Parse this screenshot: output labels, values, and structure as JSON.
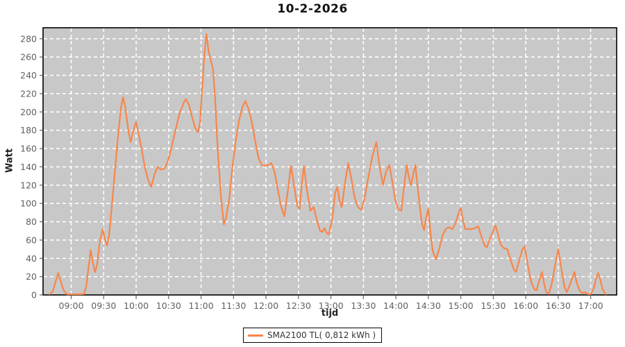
{
  "title": "10-2-2026",
  "y_axis": {
    "label": "Watt",
    "ticks": [
      0,
      20,
      40,
      60,
      80,
      100,
      120,
      140,
      160,
      180,
      200,
      220,
      240,
      260,
      280
    ]
  },
  "x_axis": {
    "label": "tijd",
    "ticks": [
      "09:00",
      "09:30",
      "10:00",
      "10:30",
      "11:00",
      "11:30",
      "12:00",
      "12:30",
      "13:00",
      "13:30",
      "14:00",
      "14:30",
      "15:00",
      "15:30",
      "16:00",
      "16:30",
      "17:00"
    ]
  },
  "legend": {
    "series_label": "SMA2100 TL( 0,812 kWh )"
  },
  "colors": {
    "plot_background": "#c8c8c8",
    "grid": "#ffffff",
    "series": "#f8854a",
    "plot_border": "#000000",
    "tick_label": "#5f5f5f",
    "tick_mark": "#666666"
  },
  "chart_data": {
    "type": "line",
    "title": "10-2-2026",
    "xlabel": "tijd",
    "ylabel": "Watt",
    "ylim": [
      0,
      292
    ],
    "x_time_range": [
      "08:34",
      "17:24"
    ],
    "grid": true,
    "legend_position": "bottom",
    "series": [
      {
        "name": "SMA2100 TL( 0,812 kWh )",
        "energy_kwh": "0,812",
        "color": "#f8854a",
        "points": [
          [
            "08:40",
            0
          ],
          [
            "08:43",
            4
          ],
          [
            "08:46",
            16
          ],
          [
            "08:48",
            24
          ],
          [
            "08:50",
            16
          ],
          [
            "08:53",
            5
          ],
          [
            "08:56",
            0
          ],
          [
            "09:00",
            0
          ],
          [
            "09:04",
            0
          ],
          [
            "09:08",
            0
          ],
          [
            "09:12",
            1
          ],
          [
            "09:14",
            10
          ],
          [
            "09:16",
            30
          ],
          [
            "09:18",
            49
          ],
          [
            "09:20",
            35
          ],
          [
            "09:22",
            25
          ],
          [
            "09:24",
            33
          ],
          [
            "09:26",
            55
          ],
          [
            "09:29",
            72
          ],
          [
            "09:31",
            62
          ],
          [
            "09:33",
            54
          ],
          [
            "09:35",
            65
          ],
          [
            "09:37",
            90
          ],
          [
            "09:40",
            130
          ],
          [
            "09:43",
            170
          ],
          [
            "09:46",
            205
          ],
          [
            "09:48",
            216
          ],
          [
            "09:50",
            205
          ],
          [
            "09:53",
            178
          ],
          [
            "09:55",
            167
          ],
          [
            "09:57",
            178
          ],
          [
            "10:00",
            189
          ],
          [
            "10:02",
            178
          ],
          [
            "10:05",
            160
          ],
          [
            "10:08",
            140
          ],
          [
            "10:11",
            126
          ],
          [
            "10:14",
            118
          ],
          [
            "10:17",
            132
          ],
          [
            "10:20",
            140
          ],
          [
            "10:23",
            137
          ],
          [
            "10:26",
            138
          ],
          [
            "10:29",
            145
          ],
          [
            "10:32",
            158
          ],
          [
            "10:36",
            178
          ],
          [
            "10:40",
            198
          ],
          [
            "10:44",
            210
          ],
          [
            "10:46",
            214
          ],
          [
            "10:49",
            207
          ],
          [
            "10:52",
            193
          ],
          [
            "10:55",
            181
          ],
          [
            "10:57",
            178
          ],
          [
            "10:59",
            188
          ],
          [
            "11:01",
            225
          ],
          [
            "11:03",
            262
          ],
          [
            "11:05",
            285
          ],
          [
            "11:07",
            266
          ],
          [
            "11:09",
            256
          ],
          [
            "11:11",
            247
          ],
          [
            "11:13",
            215
          ],
          [
            "11:15",
            168
          ],
          [
            "11:18",
            112
          ],
          [
            "11:21",
            77
          ],
          [
            "11:23",
            84
          ],
          [
            "11:26",
            105
          ],
          [
            "11:29",
            140
          ],
          [
            "11:32",
            168
          ],
          [
            "11:35",
            190
          ],
          [
            "11:38",
            205
          ],
          [
            "11:41",
            212
          ],
          [
            "11:44",
            203
          ],
          [
            "11:47",
            188
          ],
          [
            "11:50",
            168
          ],
          [
            "11:53",
            150
          ],
          [
            "11:56",
            142
          ],
          [
            "11:59",
            141
          ],
          [
            "12:02",
            142
          ],
          [
            "12:05",
            144
          ],
          [
            "12:08",
            134
          ],
          [
            "12:11",
            115
          ],
          [
            "12:14",
            96
          ],
          [
            "12:17",
            86
          ],
          [
            "12:20",
            112
          ],
          [
            "12:23",
            141
          ],
          [
            "12:26",
            119
          ],
          [
            "12:29",
            97
          ],
          [
            "12:31",
            94
          ],
          [
            "12:33",
            120
          ],
          [
            "12:35",
            141
          ],
          [
            "12:38",
            113
          ],
          [
            "12:41",
            92
          ],
          [
            "12:44",
            96
          ],
          [
            "12:47",
            82
          ],
          [
            "12:50",
            70
          ],
          [
            "12:52",
            69
          ],
          [
            "12:54",
            73
          ],
          [
            "12:56",
            68
          ],
          [
            "12:58",
            66
          ],
          [
            "13:01",
            82
          ],
          [
            "13:04",
            112
          ],
          [
            "13:06",
            118
          ],
          [
            "13:08",
            102
          ],
          [
            "13:10",
            96
          ],
          [
            "13:13",
            122
          ],
          [
            "13:16",
            144
          ],
          [
            "13:19",
            126
          ],
          [
            "13:22",
            106
          ],
          [
            "13:25",
            96
          ],
          [
            "13:28",
            93
          ],
          [
            "13:31",
            105
          ],
          [
            "13:34",
            125
          ],
          [
            "13:38",
            150
          ],
          [
            "13:42",
            167
          ],
          [
            "13:45",
            140
          ],
          [
            "13:48",
            120
          ],
          [
            "13:51",
            135
          ],
          [
            "13:54",
            142
          ],
          [
            "13:57",
            122
          ],
          [
            "14:00",
            100
          ],
          [
            "14:03",
            93
          ],
          [
            "14:05",
            92
          ],
          [
            "14:08",
            122
          ],
          [
            "14:10",
            142
          ],
          [
            "14:12",
            128
          ],
          [
            "14:14",
            120
          ],
          [
            "14:16",
            132
          ],
          [
            "14:18",
            142
          ],
          [
            "14:21",
            108
          ],
          [
            "14:24",
            78
          ],
          [
            "14:26",
            71
          ],
          [
            "14:28",
            85
          ],
          [
            "14:30",
            94
          ],
          [
            "14:32",
            68
          ],
          [
            "14:34",
            48
          ],
          [
            "14:37",
            39
          ],
          [
            "14:40",
            50
          ],
          [
            "14:43",
            65
          ],
          [
            "14:46",
            72
          ],
          [
            "14:49",
            74
          ],
          [
            "14:52",
            72
          ],
          [
            "14:55",
            78
          ],
          [
            "14:58",
            90
          ],
          [
            "15:00",
            95
          ],
          [
            "15:02",
            82
          ],
          [
            "15:04",
            72
          ],
          [
            "15:07",
            72
          ],
          [
            "15:10",
            72
          ],
          [
            "15:13",
            73
          ],
          [
            "15:16",
            75
          ],
          [
            "15:19",
            64
          ],
          [
            "15:22",
            54
          ],
          [
            "15:24",
            52
          ],
          [
            "15:27",
            62
          ],
          [
            "15:30",
            70
          ],
          [
            "15:32",
            76
          ],
          [
            "15:34",
            68
          ],
          [
            "15:37",
            55
          ],
          [
            "15:40",
            51
          ],
          [
            "15:43",
            50
          ],
          [
            "15:46",
            38
          ],
          [
            "15:49",
            28
          ],
          [
            "15:51",
            25
          ],
          [
            "15:54",
            38
          ],
          [
            "15:57",
            50
          ],
          [
            "15:59",
            53
          ],
          [
            "16:02",
            32
          ],
          [
            "16:05",
            14
          ],
          [
            "16:08",
            6
          ],
          [
            "16:10",
            5
          ],
          [
            "16:12",
            14
          ],
          [
            "16:15",
            25
          ],
          [
            "16:17",
            12
          ],
          [
            "16:19",
            3
          ],
          [
            "16:21",
            1
          ],
          [
            "16:24",
            12
          ],
          [
            "16:27",
            32
          ],
          [
            "16:30",
            50
          ],
          [
            "16:33",
            28
          ],
          [
            "16:36",
            8
          ],
          [
            "16:38",
            3
          ],
          [
            "16:41",
            12
          ],
          [
            "16:44",
            22
          ],
          [
            "16:45",
            25
          ],
          [
            "16:47",
            14
          ],
          [
            "16:50",
            4
          ],
          [
            "16:53",
            2
          ],
          [
            "16:55",
            3
          ],
          [
            "16:57",
            1
          ],
          [
            "17:00",
            0
          ],
          [
            "17:03",
            8
          ],
          [
            "17:05",
            18
          ],
          [
            "17:07",
            24
          ],
          [
            "17:09",
            16
          ],
          [
            "17:11",
            6
          ],
          [
            "17:14",
            0
          ]
        ]
      }
    ]
  }
}
